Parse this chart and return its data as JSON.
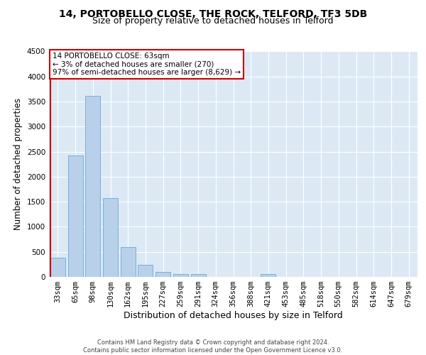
{
  "title1": "14, PORTOBELLO CLOSE, THE ROCK, TELFORD, TF3 5DB",
  "title2": "Size of property relative to detached houses in Telford",
  "xlabel": "Distribution of detached houses by size in Telford",
  "ylabel": "Number of detached properties",
  "categories": [
    "33sqm",
    "65sqm",
    "98sqm",
    "130sqm",
    "162sqm",
    "195sqm",
    "227sqm",
    "259sqm",
    "291sqm",
    "324sqm",
    "356sqm",
    "388sqm",
    "421sqm",
    "453sqm",
    "485sqm",
    "518sqm",
    "550sqm",
    "582sqm",
    "614sqm",
    "647sqm",
    "679sqm"
  ],
  "values": [
    380,
    2420,
    3620,
    1580,
    600,
    240,
    100,
    60,
    50,
    0,
    0,
    0,
    60,
    0,
    0,
    0,
    0,
    0,
    0,
    0,
    0
  ],
  "bar_color": "#b8d0ea",
  "bar_edge_color": "#6aaad4",
  "highlight_color": "#cc0000",
  "annotation_text": "14 PORTOBELLO CLOSE: 63sqm\n← 3% of detached houses are smaller (270)\n97% of semi-detached houses are larger (8,629) →",
  "annotation_box_color": "#ffffff",
  "annotation_box_edge": "#cc0000",
  "ylim": [
    0,
    4500
  ],
  "yticks": [
    0,
    500,
    1000,
    1500,
    2000,
    2500,
    3000,
    3500,
    4000,
    4500
  ],
  "footer_text": "Contains HM Land Registry data © Crown copyright and database right 2024.\nContains public sector information licensed under the Open Government Licence v3.0.",
  "background_color": "#dce9f5",
  "grid_color": "#ffffff",
  "title_fontsize": 10,
  "subtitle_fontsize": 9,
  "tick_fontsize": 7.5,
  "ylabel_fontsize": 8.5,
  "xlabel_fontsize": 9,
  "footer_fontsize": 6
}
